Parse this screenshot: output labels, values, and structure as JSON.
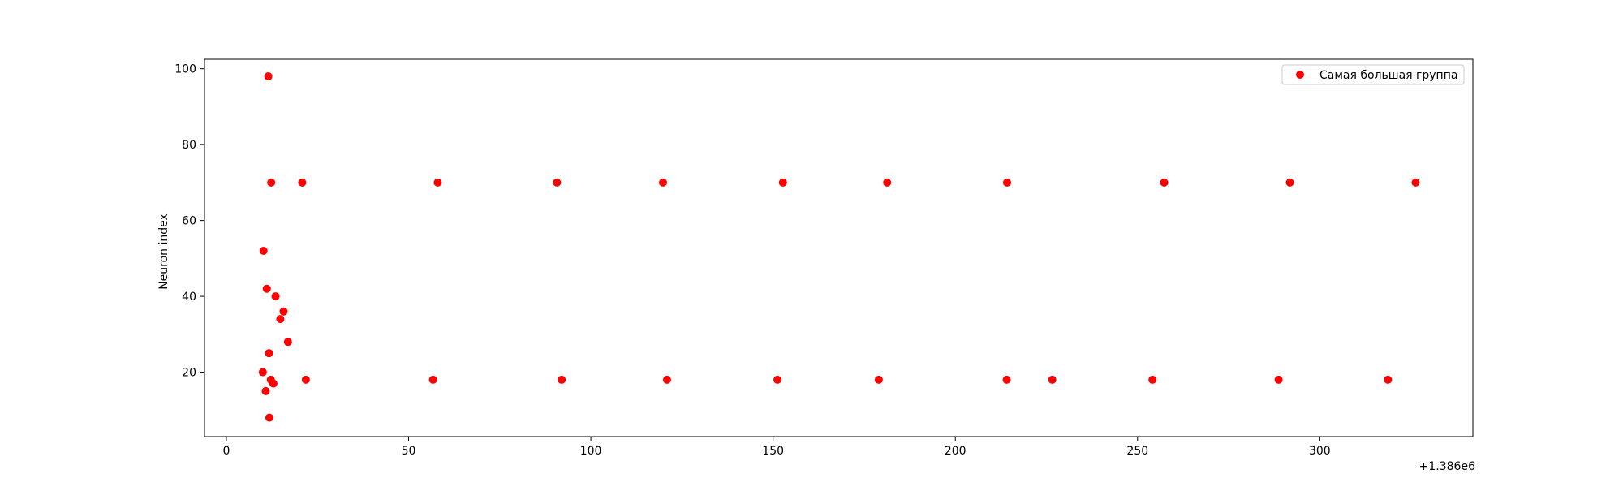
{
  "chart_data": {
    "type": "scatter",
    "title": "",
    "xlabel": "",
    "ylabel": "Neuron index",
    "x_offset_label": "+1.386e6",
    "xlim": [
      -6,
      342
    ],
    "ylim": [
      3,
      102.5
    ],
    "x_ticks": [
      0,
      50,
      100,
      150,
      200,
      250,
      300
    ],
    "y_ticks": [
      20,
      40,
      60,
      80,
      100
    ],
    "grid": false,
    "legend_position": "top-right",
    "series": [
      {
        "name": "Самая большая группа",
        "color": "#ff0000",
        "points": [
          {
            "x": 11.5,
            "y": 98
          },
          {
            "x": 12.3,
            "y": 70
          },
          {
            "x": 20.8,
            "y": 70
          },
          {
            "x": 58.0,
            "y": 70
          },
          {
            "x": 90.7,
            "y": 70
          },
          {
            "x": 119.8,
            "y": 70
          },
          {
            "x": 152.7,
            "y": 70
          },
          {
            "x": 181.3,
            "y": 70
          },
          {
            "x": 214.2,
            "y": 70
          },
          {
            "x": 257.3,
            "y": 70
          },
          {
            "x": 291.8,
            "y": 70
          },
          {
            "x": 326.3,
            "y": 70
          },
          {
            "x": 10.2,
            "y": 52
          },
          {
            "x": 11.1,
            "y": 42
          },
          {
            "x": 13.5,
            "y": 40
          },
          {
            "x": 15.7,
            "y": 36
          },
          {
            "x": 14.8,
            "y": 34
          },
          {
            "x": 16.9,
            "y": 28
          },
          {
            "x": 11.7,
            "y": 25
          },
          {
            "x": 10.0,
            "y": 20
          },
          {
            "x": 12.2,
            "y": 18
          },
          {
            "x": 12.9,
            "y": 17
          },
          {
            "x": 10.8,
            "y": 15
          },
          {
            "x": 11.8,
            "y": 8
          },
          {
            "x": 21.8,
            "y": 18
          },
          {
            "x": 56.7,
            "y": 18
          },
          {
            "x": 92.0,
            "y": 18
          },
          {
            "x": 120.9,
            "y": 18
          },
          {
            "x": 151.2,
            "y": 18
          },
          {
            "x": 179.0,
            "y": 18
          },
          {
            "x": 214.1,
            "y": 18
          },
          {
            "x": 226.6,
            "y": 18
          },
          {
            "x": 254.1,
            "y": 18
          },
          {
            "x": 288.7,
            "y": 18
          },
          {
            "x": 318.7,
            "y": 18
          }
        ]
      }
    ]
  }
}
